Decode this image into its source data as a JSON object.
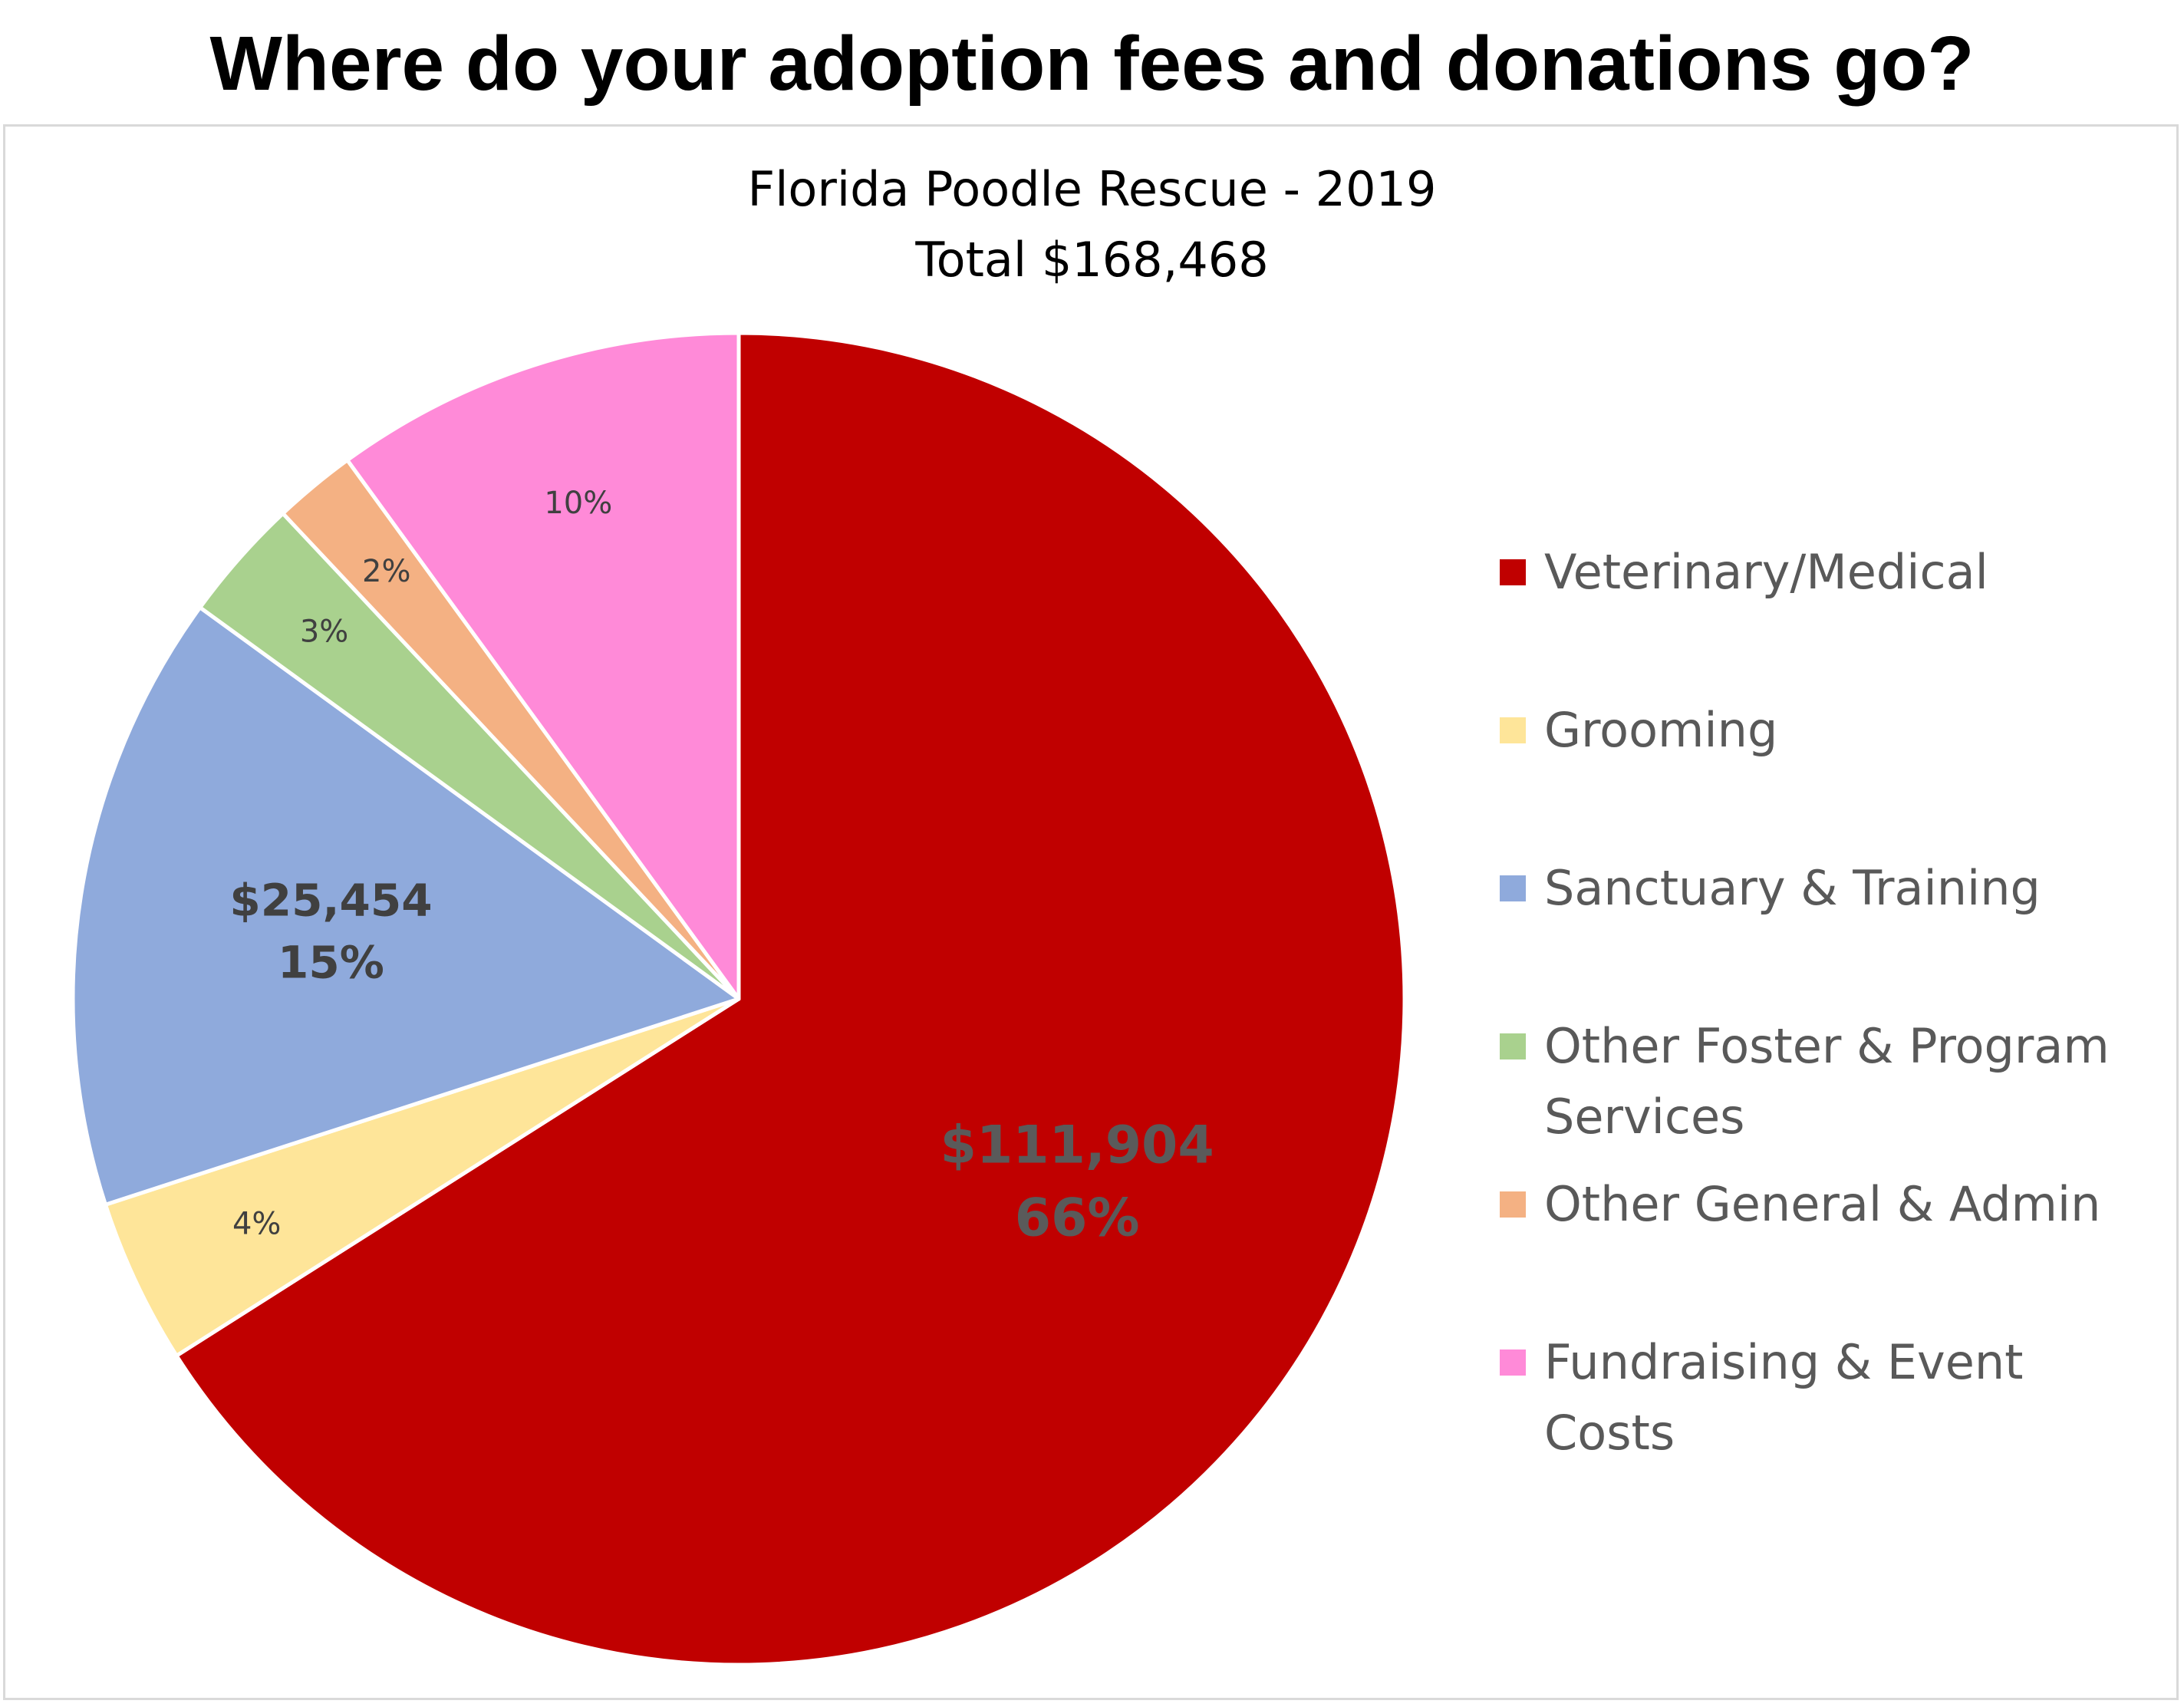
{
  "page_title": "Where do your adoption fees and donations go?",
  "chart_data": {
    "type": "pie",
    "title": "Florida Poodle Rescue - 2019",
    "subtitle": "Total $168,468",
    "slices": [
      {
        "name": "Veterinary/Medical",
        "amount": 111904,
        "percent": 66,
        "amount_label": "$111,904",
        "percent_label": "66%",
        "color": "#c00000",
        "label_color": "#5a5a5a",
        "bold": true
      },
      {
        "name": "Grooming",
        "percent": 4,
        "percent_label": "4%",
        "color": "#fee599",
        "label_color": "#404040",
        "bold": false
      },
      {
        "name": "Sanctuary & Training",
        "amount": 25454,
        "percent": 15,
        "amount_label": "$25,454",
        "percent_label": "15%",
        "color": "#8faadc",
        "label_color": "#404040",
        "bold": true
      },
      {
        "name": "Other Foster & Program Services",
        "percent": 3,
        "percent_label": "3%",
        "color": "#a9d18e",
        "label_color": "#404040",
        "bold": false
      },
      {
        "name": "Other General & Admin",
        "percent": 2,
        "percent_label": "2%",
        "color": "#f4b183",
        "label_color": "#404040",
        "bold": false
      },
      {
        "name": "Fundraising & Event Costs",
        "percent": 10,
        "percent_label": "10%",
        "color": "#ff8ad8",
        "label_color": "#404040",
        "bold": false
      }
    ],
    "legend_position": "right"
  }
}
